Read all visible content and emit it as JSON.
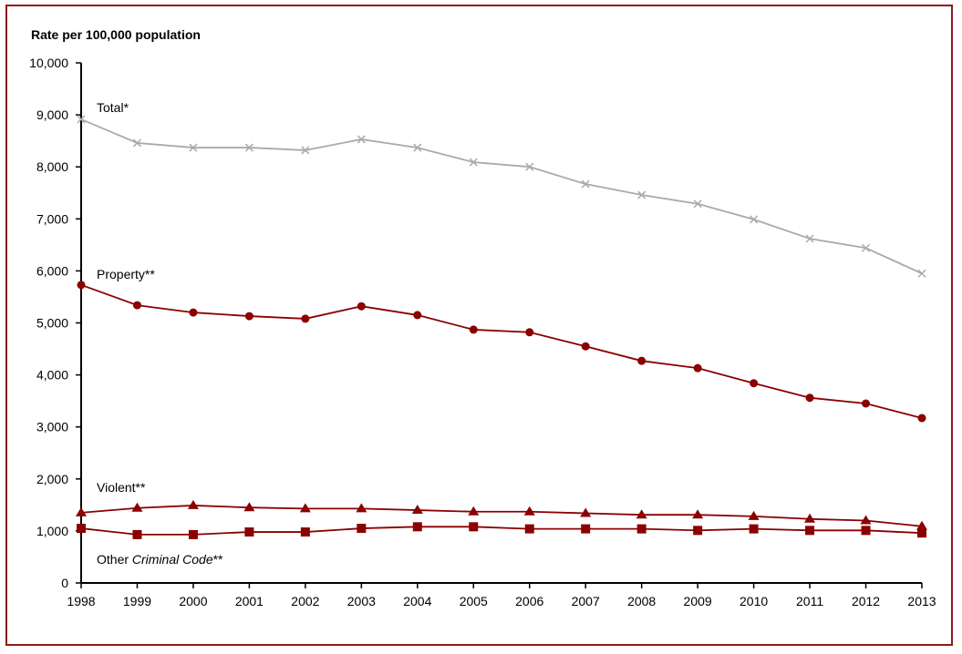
{
  "chart_data": {
    "type": "line",
    "title": "",
    "ylabel": "Rate per 100,000 population",
    "xlabel": "",
    "ylim": [
      0,
      10000
    ],
    "yticks": [
      "0",
      "1,000",
      "2,000",
      "3,000",
      "4,000",
      "5,000",
      "6,000",
      "7,000",
      "8,000",
      "9,000",
      "10,000"
    ],
    "x": [
      "1998",
      "1999",
      "2000",
      "2001",
      "2002",
      "2003",
      "2004",
      "2005",
      "2006",
      "2007",
      "2008",
      "2009",
      "2010",
      "2011",
      "2012",
      "2013"
    ],
    "grid": false,
    "series": [
      {
        "name": "Total*",
        "name_italic": "",
        "name_suffix": "",
        "color": "#aaaaaa",
        "marker": "x",
        "values": [
          8915,
          8460,
          8370,
          8370,
          8320,
          8530,
          8370,
          8090,
          8000,
          7670,
          7460,
          7290,
          6990,
          6620,
          6440,
          5950
        ]
      },
      {
        "name": "Property**",
        "name_italic": "",
        "name_suffix": "",
        "color": "#8b0000",
        "marker": "circle",
        "values": [
          5730,
          5340,
          5200,
          5130,
          5080,
          5320,
          5150,
          4870,
          4820,
          4550,
          4270,
          4130,
          3840,
          3560,
          3450,
          3170
        ]
      },
      {
        "name": "Violent**",
        "name_italic": "",
        "name_suffix": "",
        "color": "#8b0000",
        "marker": "triangle",
        "values": [
          1350,
          1440,
          1490,
          1450,
          1430,
          1430,
          1400,
          1370,
          1370,
          1340,
          1310,
          1310,
          1280,
          1230,
          1200,
          1090
        ]
      },
      {
        "name": "Other ",
        "name_italic": "Criminal Code",
        "name_suffix": "**",
        "color": "#8b0000",
        "marker": "square",
        "values": [
          1050,
          930,
          930,
          980,
          980,
          1050,
          1080,
          1080,
          1040,
          1040,
          1040,
          1010,
          1040,
          1010,
          1010,
          960
        ]
      }
    ]
  }
}
